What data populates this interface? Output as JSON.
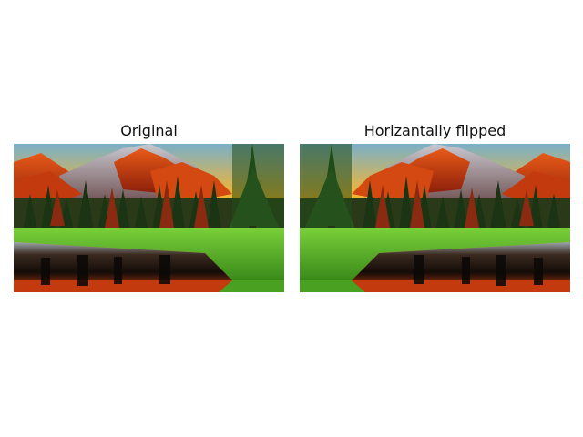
{
  "panels": [
    {
      "title": "Original",
      "flipped": false
    },
    {
      "title": "Horizantally flipped",
      "flipped": true
    }
  ],
  "colors": {
    "sky": "#f2a020",
    "mountain": "#d04010",
    "forest": "#1f3d18",
    "grass": "#5bbf2a",
    "water": "#1a1410"
  }
}
